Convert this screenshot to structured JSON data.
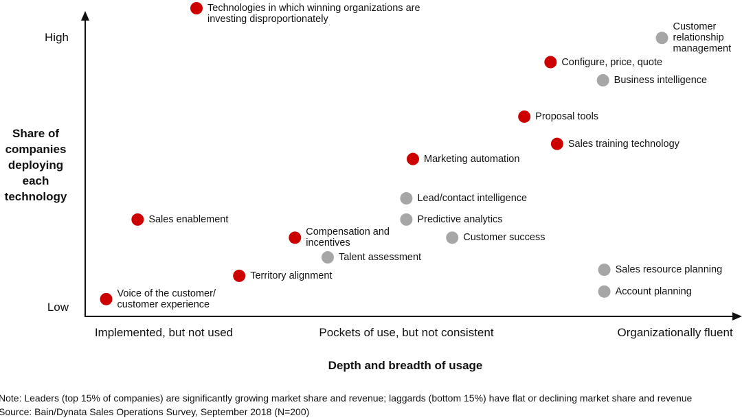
{
  "chart_data": {
    "type": "scatter",
    "x_label": "Depth and breadth of usage",
    "y_label": "Share of companies deploying each technology",
    "xlim": [
      0,
      100
    ],
    "ylim": [
      0,
      100
    ],
    "xticks": [
      {
        "value": 12,
        "label": "Implemented, but not used"
      },
      {
        "value": 49,
        "label": "Pockets of use, but not consistent"
      },
      {
        "value": 90,
        "label": "Organizationally fluent"
      }
    ],
    "yticks": [
      {
        "value": 3,
        "label": "Low"
      },
      {
        "value": 92,
        "label": "High"
      }
    ],
    "series": [
      {
        "name": "Technologies in which winning organizations are investing disproportionately",
        "color": "#cc0000",
        "labels": [
          "Configure, price, quote",
          "Proposal tools",
          "Sales training technology",
          "Marketing automation",
          "Sales enablement",
          "Compensation and\nincentives",
          "Territory alignment",
          "Voice of the customer/\ncustomer experience"
        ],
        "x": [
          71,
          67,
          72,
          50,
          8,
          32,
          23.5,
          3.2
        ],
        "y": [
          84,
          66,
          57,
          52,
          32,
          26,
          13.4,
          5.7
        ]
      },
      {
        "color": "#a6a6a6",
        "labels": [
          "Customer\nrelationship\nmanagement",
          "Business intelligence",
          "Lead/contact intelligence",
          "Predictive analytics",
          "Customer success",
          "Talent assessment",
          "Sales resource planning",
          "Account planning"
        ],
        "x": [
          88,
          79,
          49,
          49,
          56,
          37,
          79.2,
          79.2
        ],
        "y": [
          92,
          78,
          39,
          32,
          26,
          19.5,
          15.4,
          8.2
        ]
      }
    ],
    "notes": [
      "Note: Leaders (top 15% of companies) are significantly growing market share and revenue; laggards (bottom 15%) have flat or declining market share and revenue",
      "Source: Bain/Dynata Sales Operations Survey, September 2018 (N=200)"
    ]
  }
}
